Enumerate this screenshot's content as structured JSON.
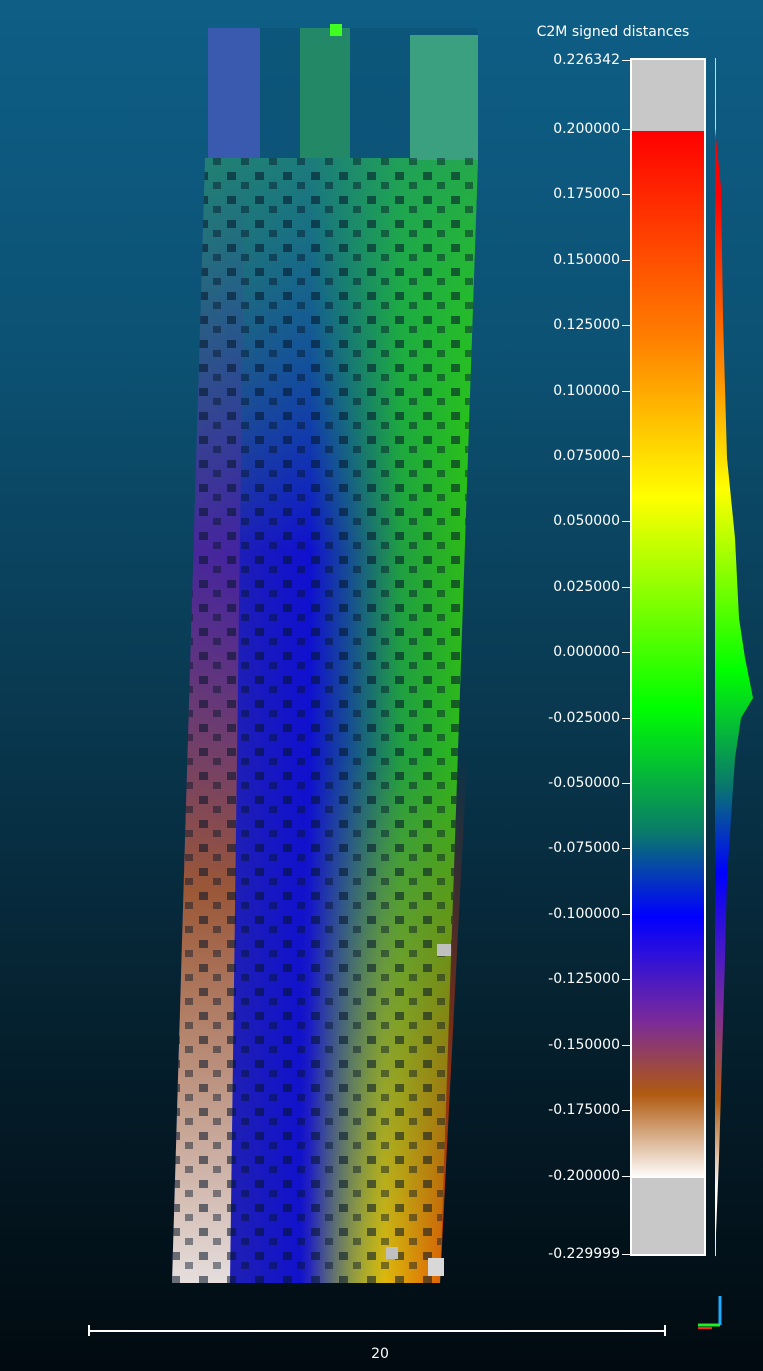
{
  "scalar_field": {
    "title": "C2M signed distances",
    "max_label": "0.226342",
    "min_label": "-0.229999",
    "range": [
      -0.229999,
      0.226342
    ],
    "saturation": [
      -0.2,
      0.2
    ],
    "ticks": [
      {
        "value": 0.226342,
        "label": "0.226342"
      },
      {
        "value": 0.2,
        "label": "0.200000"
      },
      {
        "value": 0.175,
        "label": "0.175000"
      },
      {
        "value": 0.15,
        "label": "0.150000"
      },
      {
        "value": 0.125,
        "label": "0.125000"
      },
      {
        "value": 0.1,
        "label": "0.100000"
      },
      {
        "value": 0.075,
        "label": "0.075000"
      },
      {
        "value": 0.05,
        "label": "0.050000"
      },
      {
        "value": 0.025,
        "label": "0.025000"
      },
      {
        "value": 0.0,
        "label": "0.000000"
      },
      {
        "value": -0.025,
        "label": "-0.025000"
      },
      {
        "value": -0.05,
        "label": "-0.050000"
      },
      {
        "value": -0.075,
        "label": "-0.075000"
      },
      {
        "value": -0.1,
        "label": "-0.100000"
      },
      {
        "value": -0.125,
        "label": "-0.125000"
      },
      {
        "value": -0.15,
        "label": "-0.150000"
      },
      {
        "value": -0.175,
        "label": "-0.175000"
      },
      {
        "value": -0.2,
        "label": "-0.200000"
      },
      {
        "value": -0.229999,
        "label": "-0.229999"
      }
    ],
    "colors": {
      "max": "#ff0000",
      "mid_high": "#ffff00",
      "mid": "#00ff00",
      "zero": "#0a7a6a",
      "neg": "#0000ff",
      "low": "#b05a10",
      "min": "#ffffff",
      "out_of_range": "#c8c8c8"
    }
  },
  "scalebar": {
    "label": "20"
  }
}
